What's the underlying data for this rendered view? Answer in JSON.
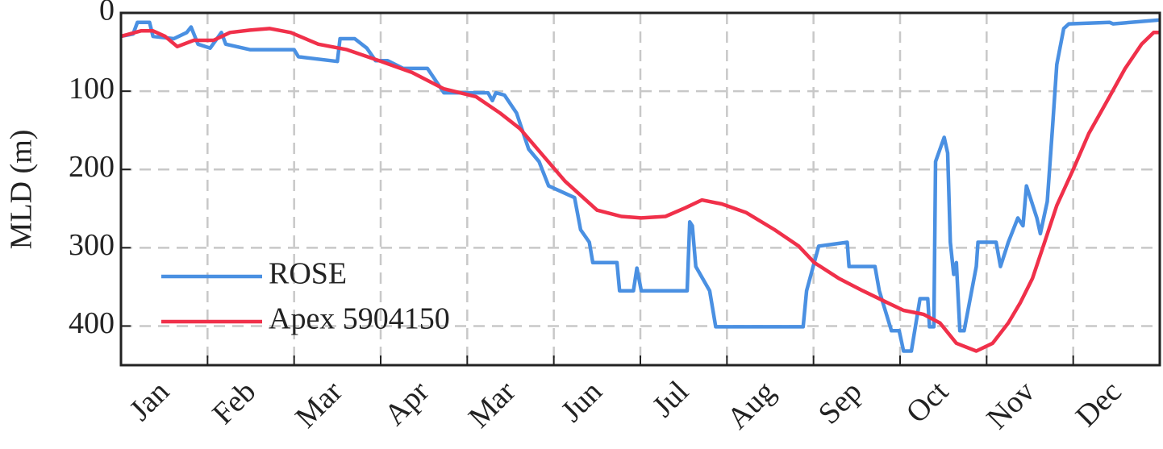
{
  "chart_data": {
    "type": "line",
    "ylabel": "MLD (m)",
    "xlim": [
      0,
      12
    ],
    "xticks": [
      {
        "value": 0,
        "label": "Jan"
      },
      {
        "value": 1,
        "label": "Feb"
      },
      {
        "value": 2,
        "label": "Mar"
      },
      {
        "value": 3,
        "label": "Apr"
      },
      {
        "value": 4,
        "label": "Mar"
      },
      {
        "value": 5,
        "label": "Jun"
      },
      {
        "value": 6,
        "label": "Jul"
      },
      {
        "value": 7,
        "label": "Aug"
      },
      {
        "value": 8,
        "label": "Sep"
      },
      {
        "value": 9,
        "label": "Oct"
      },
      {
        "value": 10,
        "label": "Nov"
      },
      {
        "value": 11,
        "label": "Dec"
      }
    ],
    "ylim": [
      0,
      450
    ],
    "y_reversed": true,
    "yticks": [
      0,
      100,
      200,
      300,
      400
    ],
    "grid": true,
    "legend": "lower-left",
    "series": [
      {
        "name": "ROSE",
        "color": "#4a90e2",
        "x": [
          0,
          0.14,
          0.19,
          0.33,
          0.37,
          0.61,
          0.76,
          0.81,
          0.89,
          1.03,
          1.16,
          1.21,
          1.49,
          2.0,
          2.05,
          2.5,
          2.53,
          2.7,
          2.84,
          2.94,
          3.08,
          3.26,
          3.54,
          3.73,
          4.24,
          4.29,
          4.33,
          4.43,
          4.57,
          4.71,
          4.83,
          4.94,
          5.24,
          5.31,
          5.41,
          5.45,
          5.73,
          5.76,
          5.92,
          5.96,
          6.01,
          6.54,
          6.57,
          6.6,
          6.64,
          6.8,
          6.87,
          7.88,
          7.92,
          8.06,
          8.39,
          8.41,
          8.71,
          8.76,
          8.9,
          8.99,
          9.04,
          9.13,
          9.23,
          9.32,
          9.34,
          9.39,
          9.41,
          9.51,
          9.55,
          9.58,
          9.62,
          9.65,
          9.69,
          9.74,
          9.88,
          9.9,
          10.11,
          10.16,
          10.25,
          10.36,
          10.42,
          10.46,
          10.58,
          10.62,
          10.7,
          10.76,
          10.81,
          10.89,
          10.95,
          11.42,
          11.46,
          12
        ],
        "values": [
          30,
          27,
          12,
          12,
          30,
          33,
          25,
          18,
          40,
          45,
          25,
          40,
          47,
          47,
          56,
          62,
          33,
          33,
          45,
          61,
          61,
          71,
          71,
          102,
          102,
          112,
          102,
          105,
          128,
          174,
          190,
          221,
          236,
          277,
          293,
          319,
          319,
          355,
          355,
          326,
          355,
          355,
          267,
          272,
          324,
          355,
          401,
          401,
          355,
          298,
          293,
          324,
          324,
          355,
          406,
          406,
          432,
          432,
          365,
          365,
          401,
          401,
          190,
          159,
          179,
          293,
          334,
          319,
          406,
          406,
          324,
          293,
          293,
          324,
          293,
          262,
          272,
          221,
          262,
          282,
          241,
          148,
          66,
          20,
          14,
          12,
          14,
          9
        ]
      },
      {
        "name": "Apex 5904150",
        "color": "#f0304a",
        "x": [
          0,
          0.23,
          0.37,
          0.51,
          0.65,
          0.84,
          1.07,
          1.26,
          1.49,
          1.72,
          1.96,
          2.28,
          2.61,
          2.98,
          3.36,
          3.73,
          4.1,
          4.38,
          4.61,
          4.85,
          5.13,
          5.5,
          5.78,
          6.01,
          6.29,
          6.52,
          6.71,
          6.94,
          7.22,
          7.55,
          7.83,
          8.01,
          8.29,
          8.57,
          8.85,
          9.04,
          9.27,
          9.46,
          9.65,
          9.88,
          10.07,
          10.25,
          10.39,
          10.53,
          10.67,
          10.81,
          11.0,
          11.18,
          11.42,
          11.6,
          11.79,
          11.93,
          12
        ],
        "values": [
          30,
          23,
          23,
          30,
          43,
          35,
          35,
          25,
          22,
          20,
          25,
          40,
          47,
          61,
          76,
          97,
          107,
          128,
          148,
          179,
          215,
          252,
          260,
          262,
          260,
          249,
          239,
          244,
          255,
          277,
          298,
          319,
          339,
          355,
          370,
          380,
          385,
          396,
          422,
          432,
          422,
          396,
          370,
          339,
          293,
          246,
          200,
          154,
          107,
          71,
          40,
          25,
          25
        ]
      }
    ]
  }
}
